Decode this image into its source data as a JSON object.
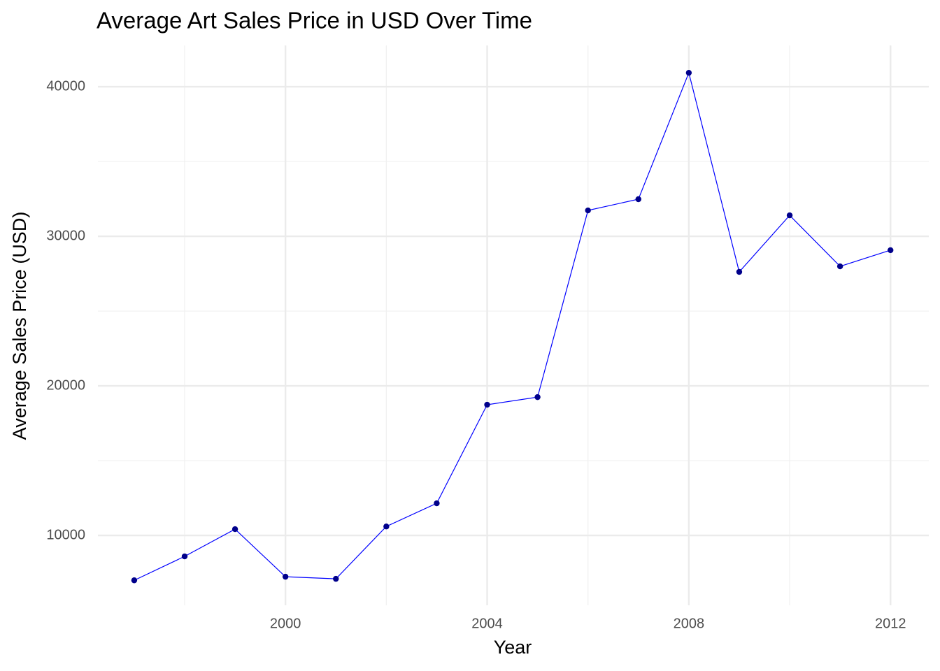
{
  "chart_data": {
    "type": "line",
    "title": "Average Art Sales Price in USD Over Time",
    "x_label": "Year",
    "y_label": "Average Sales Price (USD)",
    "x": [
      1997,
      1998,
      1999,
      2000,
      2001,
      2002,
      2003,
      2004,
      2005,
      2006,
      2007,
      2008,
      2009,
      2010,
      2011,
      2012
    ],
    "values": [
      7000,
      8600,
      10420,
      7240,
      7100,
      10600,
      12150,
      18740,
      19250,
      31730,
      32480,
      40930,
      27620,
      31400,
      27990,
      29070
    ],
    "line_color": "#0000ff",
    "point_color": "#00008b",
    "xlim": [
      1996.28,
      2012.76
    ],
    "ylim": [
      5330,
      42760
    ],
    "xticks": [
      2000,
      2004,
      2008,
      2012
    ],
    "yticks": [
      10000,
      20000,
      30000,
      40000
    ],
    "x_minor_grid": [
      1998,
      2002,
      2006,
      2010
    ],
    "y_minor_grid": [
      15000,
      25000,
      35000
    ],
    "grid": true
  }
}
